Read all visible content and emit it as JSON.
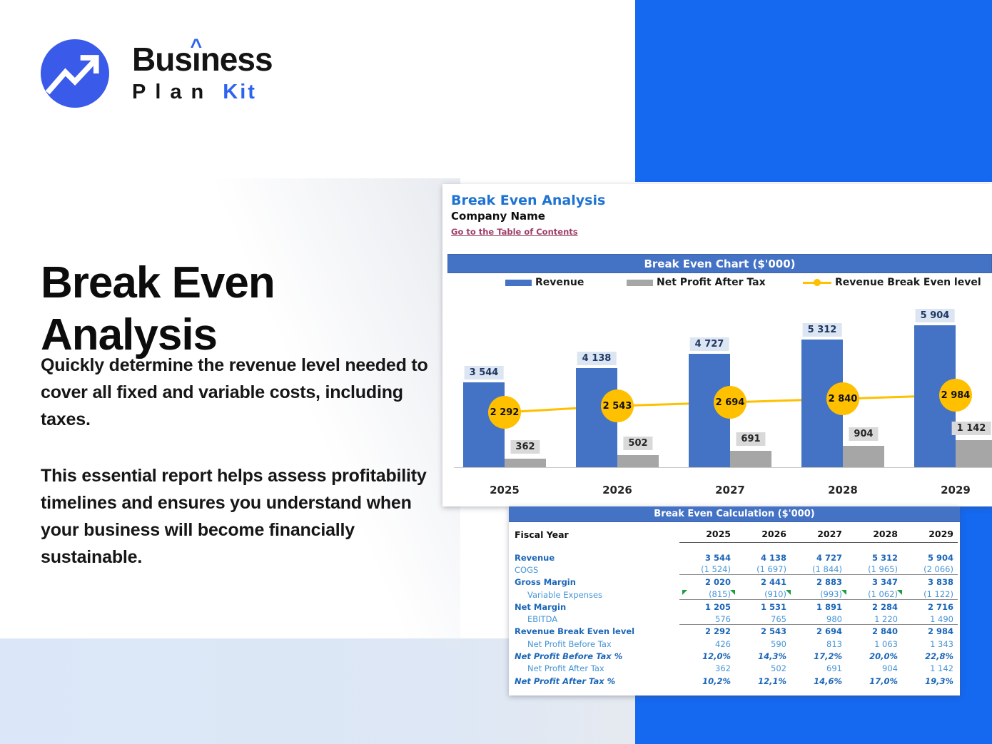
{
  "brand": {
    "word1_pre": "Bus",
    "word1_i": "ı",
    "word1_caret": "^",
    "word1_post": "ness",
    "word2": "Plan",
    "word3": "Kit"
  },
  "hero": {
    "title": "Break Even\nAnalysis",
    "paragraph1": "Quickly determine the revenue level needed to cover all fixed and variable costs, including taxes.",
    "paragraph2": "This essential report helps assess profitability timelines and ensures you understand when your business will become financially sustainable."
  },
  "sheet": {
    "title": "Break Even Analysis",
    "company": "Company Name",
    "link": "Go to the Table of Contents"
  },
  "chart_data": {
    "type": "bar",
    "title": "Break Even Chart ($'000)",
    "categories": [
      "2025",
      "2026",
      "2027",
      "2028",
      "2029"
    ],
    "series": [
      {
        "name": "Revenue",
        "type": "bar",
        "color": "#4472C4",
        "values": [
          3544,
          4138,
          4727,
          5312,
          5904
        ],
        "labels": [
          "3 544",
          "4 138",
          "4 727",
          "5 312",
          "5 904"
        ],
        "label_bg": "#DCE5F2",
        "label_color": "#1F3864"
      },
      {
        "name": "Net Profit After Tax",
        "type": "bar",
        "color": "#A6A6A6",
        "values": [
          362,
          502,
          691,
          904,
          1142
        ],
        "labels": [
          "362",
          "502",
          "691",
          "904",
          "1 142"
        ],
        "label_bg": "#D9D9D9",
        "label_color": "#262626"
      },
      {
        "name": "Revenue Break Even level",
        "type": "line",
        "color": "#FFC000",
        "values": [
          2292,
          2543,
          2694,
          2840,
          2984
        ],
        "labels": [
          "2 292",
          "2 543",
          "2 694",
          "2 840",
          "2 984"
        ],
        "label_bg": "#FFC000",
        "label_color": "#111111"
      }
    ],
    "ylim": [
      0,
      6500
    ],
    "legend_position": "top",
    "grid": false,
    "xlabel": "",
    "ylabel": ""
  },
  "table": {
    "title": "Break Even Calculation ($'000)",
    "header_label": "Fiscal Year",
    "columns": [
      "2025",
      "2026",
      "2027",
      "2028",
      "2029"
    ],
    "rows": [
      {
        "label": "Revenue",
        "style": "bold",
        "values": [
          "3 544",
          "4 138",
          "4 727",
          "5 312",
          "5 904"
        ]
      },
      {
        "label": "COGS",
        "style": "regular",
        "values": [
          "(1 524)",
          "(1 697)",
          "(1 844)",
          "(1 965)",
          "(2 066)"
        ],
        "rule_below": true
      },
      {
        "label": "Gross Margin",
        "style": "bold",
        "values": [
          "2 020",
          "2 441",
          "2 883",
          "3 347",
          "3 838"
        ]
      },
      {
        "label": "Variable Expenses",
        "style": "regular",
        "indent": true,
        "values": [
          "(815)",
          "(910)",
          "(993)",
          "(1 062)",
          "(1 122)"
        ],
        "rule_below": true,
        "flags": true
      },
      {
        "label": "Net Margin",
        "style": "bold",
        "values": [
          "1 205",
          "1 531",
          "1 891",
          "2 284",
          "2 716"
        ]
      },
      {
        "label": "EBITDA",
        "style": "regular",
        "indent": true,
        "values": [
          "576",
          "765",
          "980",
          "1 220",
          "1 490"
        ],
        "rule_below": true
      },
      {
        "label": "Revenue Break Even level",
        "style": "bold",
        "values": [
          "2 292",
          "2 543",
          "2 694",
          "2 840",
          "2 984"
        ]
      },
      {
        "label": "Net Profit Before Tax",
        "style": "regular",
        "indent": true,
        "values": [
          "426",
          "590",
          "813",
          "1 063",
          "1 343"
        ]
      },
      {
        "label": "Net Profit Before Tax %",
        "style": "bold-italic",
        "values": [
          "12,0%",
          "14,3%",
          "17,2%",
          "20,0%",
          "22,8%"
        ]
      },
      {
        "label": "Net Profit After Tax",
        "style": "regular",
        "indent": true,
        "values": [
          "362",
          "502",
          "691",
          "904",
          "1 142"
        ]
      },
      {
        "label": "Net Profit After Tax %",
        "style": "bold-italic",
        "values": [
          "10,2%",
          "12,1%",
          "14,6%",
          "17,0%",
          "19,3%"
        ]
      }
    ]
  },
  "colors": {
    "accent_blue": "#1568F0",
    "logo_circle_blue": "#3A5BE9",
    "brand_blue": "#2E63F0",
    "excel_header_blue": "#4472C4",
    "bar_gray": "#A6A6A6",
    "line_yellow": "#FFC000",
    "link_maroon": "#9D3E68",
    "sheet_title_blue": "#1E73D2",
    "table_bold_blue": "#1B66B8",
    "table_regular_blue": "#4694D6",
    "flag_green": "#1E9E40"
  }
}
